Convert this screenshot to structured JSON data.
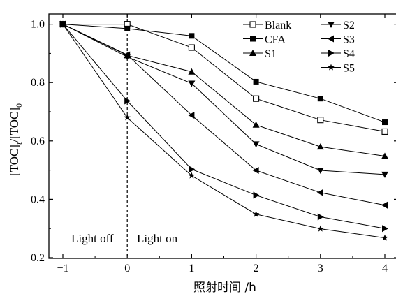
{
  "chart_data": {
    "type": "line",
    "xlabel": "照射时间 /h",
    "ylabel": {
      "main": "[TOC]",
      "sub1": "t",
      "mid": "/[TOC]",
      "sub2": "0"
    },
    "xlim": [
      -1,
      4
    ],
    "ylim": [
      0.2,
      1.05
    ],
    "x_ticks": [
      -1,
      0,
      1,
      2,
      3,
      4
    ],
    "y_ticks": [
      0.2,
      0.4,
      0.6,
      0.8,
      1.0
    ],
    "x_tick_labels": [
      "−1",
      "0",
      "1",
      "2",
      "3",
      "4"
    ],
    "y_tick_labels": [
      "0.2",
      "0.4",
      "0.6",
      "0.8",
      "1.0"
    ],
    "x": [
      -1,
      0,
      1,
      2,
      3,
      4
    ],
    "annotations": {
      "light_off": "Light off",
      "light_on": "Light on"
    },
    "light_switch_x": 0,
    "grid": false,
    "legend_placement": "top-right",
    "series": [
      {
        "name": "Blank",
        "marker": "square-open",
        "values": [
          1.0,
          1.0,
          0.92,
          0.745,
          0.672,
          0.632
        ]
      },
      {
        "name": "CFA",
        "marker": "square-filled",
        "values": [
          1.0,
          0.985,
          0.96,
          0.803,
          0.745,
          0.664
        ]
      },
      {
        "name": "S1",
        "marker": "triangle-up",
        "values": [
          1.0,
          0.893,
          0.837,
          0.655,
          0.58,
          0.548
        ]
      },
      {
        "name": "S2",
        "marker": "triangle-down",
        "values": [
          1.0,
          0.888,
          0.797,
          0.589,
          0.499,
          0.485
        ]
      },
      {
        "name": "S3",
        "marker": "triangle-left",
        "values": [
          1.0,
          0.895,
          0.688,
          0.499,
          0.423,
          0.38
        ]
      },
      {
        "name": "S4",
        "marker": "triangle-right",
        "values": [
          1.0,
          0.737,
          0.503,
          0.414,
          0.34,
          0.3
        ]
      },
      {
        "name": "S5",
        "marker": "star",
        "values": [
          1.0,
          0.68,
          0.481,
          0.349,
          0.299,
          0.268
        ]
      }
    ]
  }
}
